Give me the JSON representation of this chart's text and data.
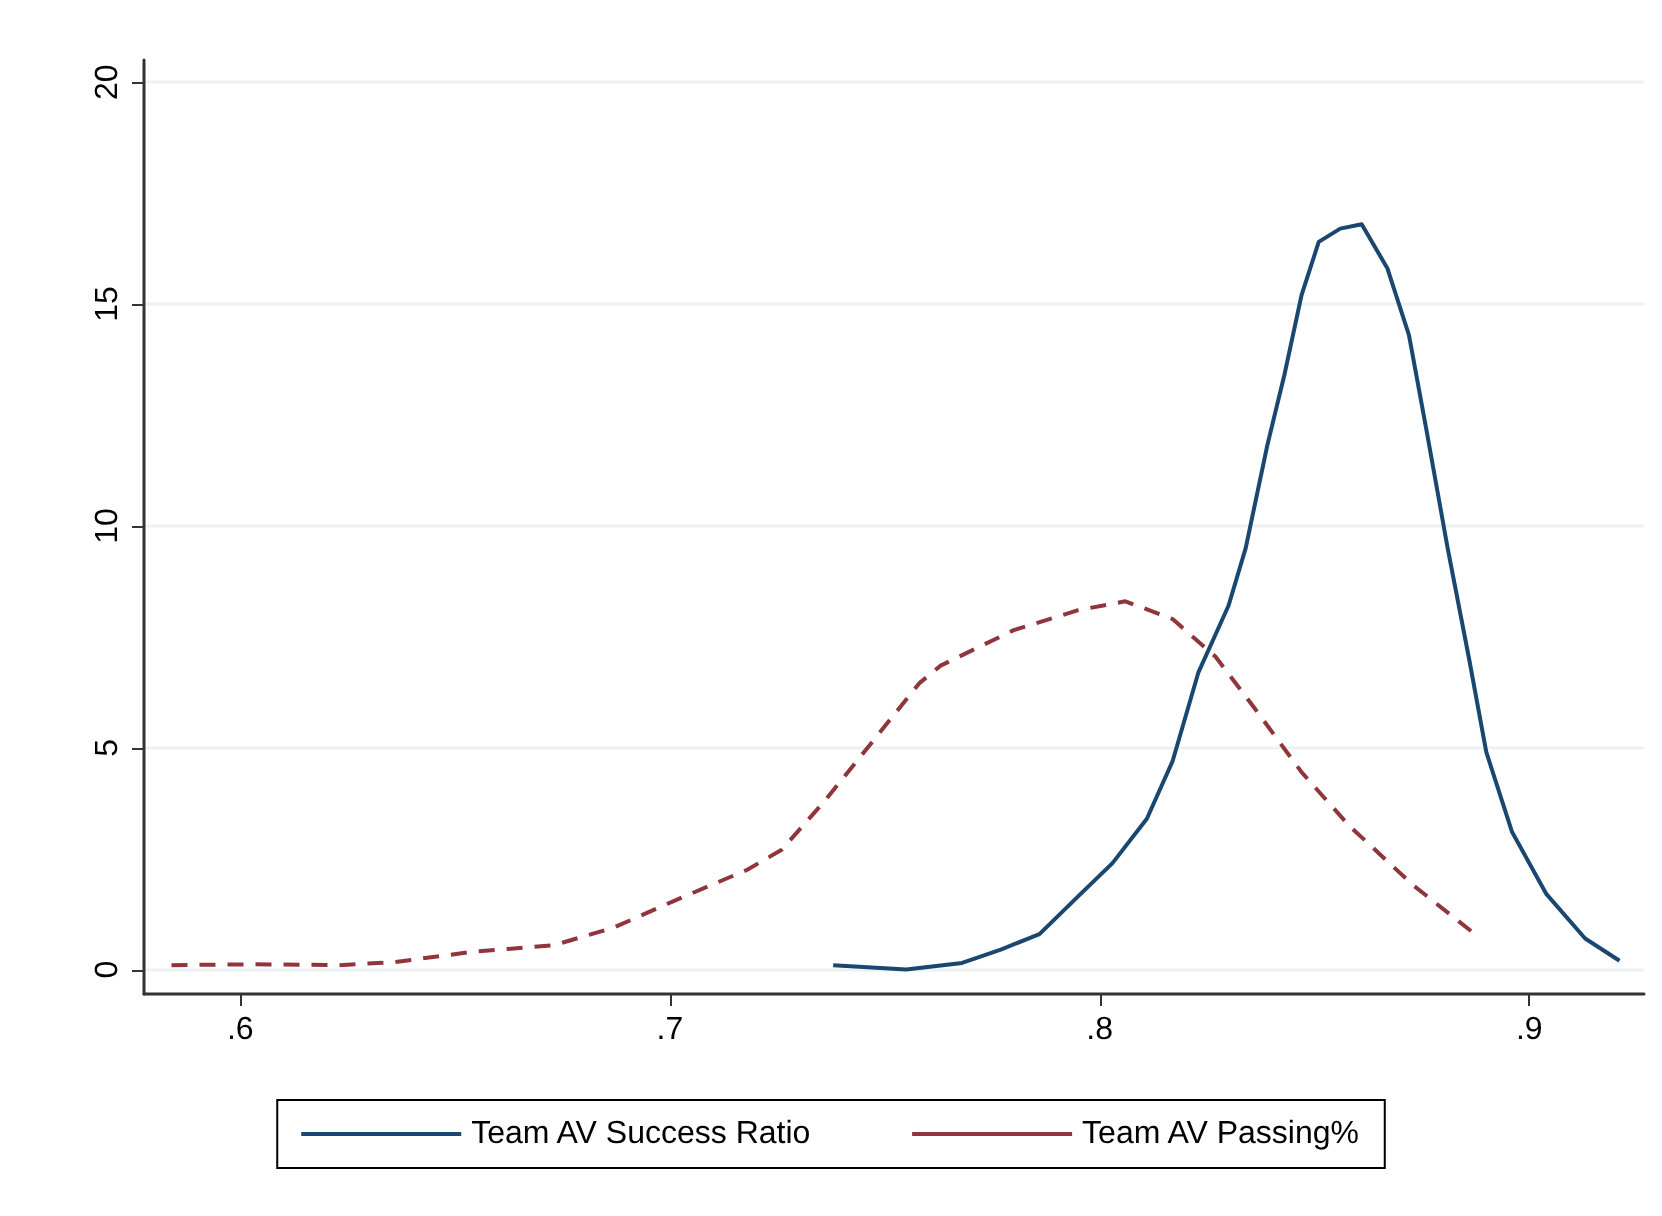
{
  "chart_data": {
    "type": "line",
    "xlim": [
      0.5776,
      0.9267
    ],
    "ylim": [
      -0.55,
      20.5
    ],
    "xticks": [
      {
        "value": 0.6,
        "label": ".6"
      },
      {
        "value": 0.7,
        "label": ".7"
      },
      {
        "value": 0.8,
        "label": ".8"
      },
      {
        "value": 0.9,
        "label": ".9"
      }
    ],
    "yticks": [
      0,
      5,
      10,
      15,
      20
    ],
    "grid": "y",
    "legend": "bottom",
    "marker": "none",
    "series": [
      {
        "name": "Team AV Success Ratio",
        "color": "#1a476f",
        "line_style": "solid",
        "x": [
          0.738,
          0.755,
          0.768,
          0.777,
          0.786,
          0.795,
          0.803,
          0.811,
          0.817,
          0.823,
          0.83,
          0.834,
          0.839,
          0.843,
          0.847,
          0.851,
          0.856,
          0.861,
          0.867,
          0.872,
          0.876,
          0.881,
          0.886,
          0.89,
          0.896,
          0.904,
          0.913,
          0.921
        ],
        "values": [
          0.1,
          0.0,
          0.15,
          0.45,
          0.8,
          1.65,
          2.4,
          3.4,
          4.7,
          6.7,
          8.2,
          9.5,
          11.8,
          13.4,
          15.2,
          16.4,
          16.7,
          16.8,
          15.8,
          14.3,
          12.2,
          9.5,
          7.0,
          4.9,
          3.1,
          1.7,
          0.7,
          0.2
        ]
      },
      {
        "name": "Team AV Passing%",
        "color": "#90353b",
        "line_style": "dashed",
        "x": [
          0.584,
          0.603,
          0.623,
          0.636,
          0.654,
          0.673,
          0.687,
          0.701,
          0.718,
          0.726,
          0.736,
          0.746,
          0.758,
          0.763,
          0.78,
          0.795,
          0.806,
          0.817,
          0.827,
          0.836,
          0.847,
          0.858,
          0.873,
          0.888
        ],
        "values": [
          0.1,
          0.12,
          0.1,
          0.17,
          0.4,
          0.55,
          0.95,
          1.55,
          2.25,
          2.7,
          3.8,
          5.0,
          6.45,
          6.85,
          7.65,
          8.1,
          8.3,
          7.9,
          7.05,
          5.9,
          4.45,
          3.25,
          1.9,
          0.75
        ]
      }
    ]
  }
}
